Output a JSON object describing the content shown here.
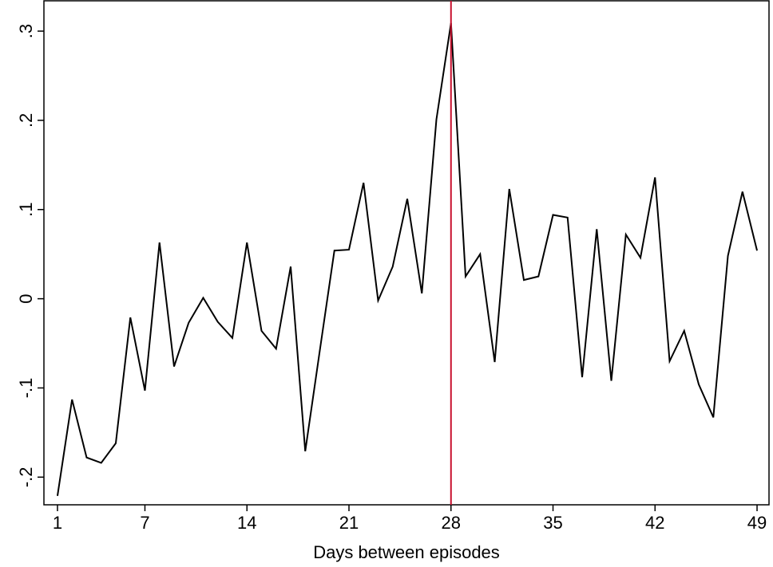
{
  "chart_data": {
    "type": "line",
    "xlabel": "Days between episodes",
    "x": [
      1,
      2,
      3,
      4,
      5,
      6,
      7,
      8,
      9,
      10,
      11,
      12,
      13,
      14,
      15,
      16,
      17,
      18,
      19,
      20,
      21,
      22,
      23,
      24,
      25,
      26,
      27,
      28,
      29,
      30,
      31,
      32,
      33,
      34,
      35,
      36,
      37,
      38,
      39,
      40,
      41,
      42,
      43,
      44,
      45,
      46,
      47,
      48,
      49
    ],
    "series": [
      {
        "color": "#000000",
        "values": [
          -0.221,
          -0.113,
          -0.178,
          -0.184,
          -0.162,
          -0.021,
          -0.103,
          0.063,
          -0.076,
          -0.027,
          0.001,
          -0.026,
          -0.044,
          0.063,
          -0.036,
          -0.056,
          0.036,
          -0.171,
          -0.058,
          0.054,
          0.055,
          0.13,
          -0.002,
          0.036,
          0.112,
          0.006,
          0.201,
          0.309,
          0.025,
          0.05,
          -0.071,
          0.123,
          0.021,
          0.025,
          0.094,
          0.091,
          -0.088,
          0.078,
          -0.092,
          0.072,
          0.046,
          0.136,
          -0.07,
          -0.036,
          -0.096,
          -0.133,
          0.048,
          0.12,
          0.054
        ]
      }
    ],
    "xlim": [
      0.07,
      49.82
    ],
    "ylim": [
      -0.231,
      0.334
    ],
    "xticks": [
      1,
      7,
      14,
      21,
      28,
      35,
      42,
      49
    ],
    "yticks": [
      {
        "value": -0.2,
        "label": "-.2"
      },
      {
        "value": -0.1,
        "label": "-.1"
      },
      0,
      {
        "value": 0.1,
        "label": ".1"
      },
      {
        "value": 0.2,
        "label": ".2"
      },
      {
        "value": 0.3,
        "label": ".3"
      }
    ],
    "reference_line": {
      "x": 28,
      "color": "#c8102e"
    }
  }
}
